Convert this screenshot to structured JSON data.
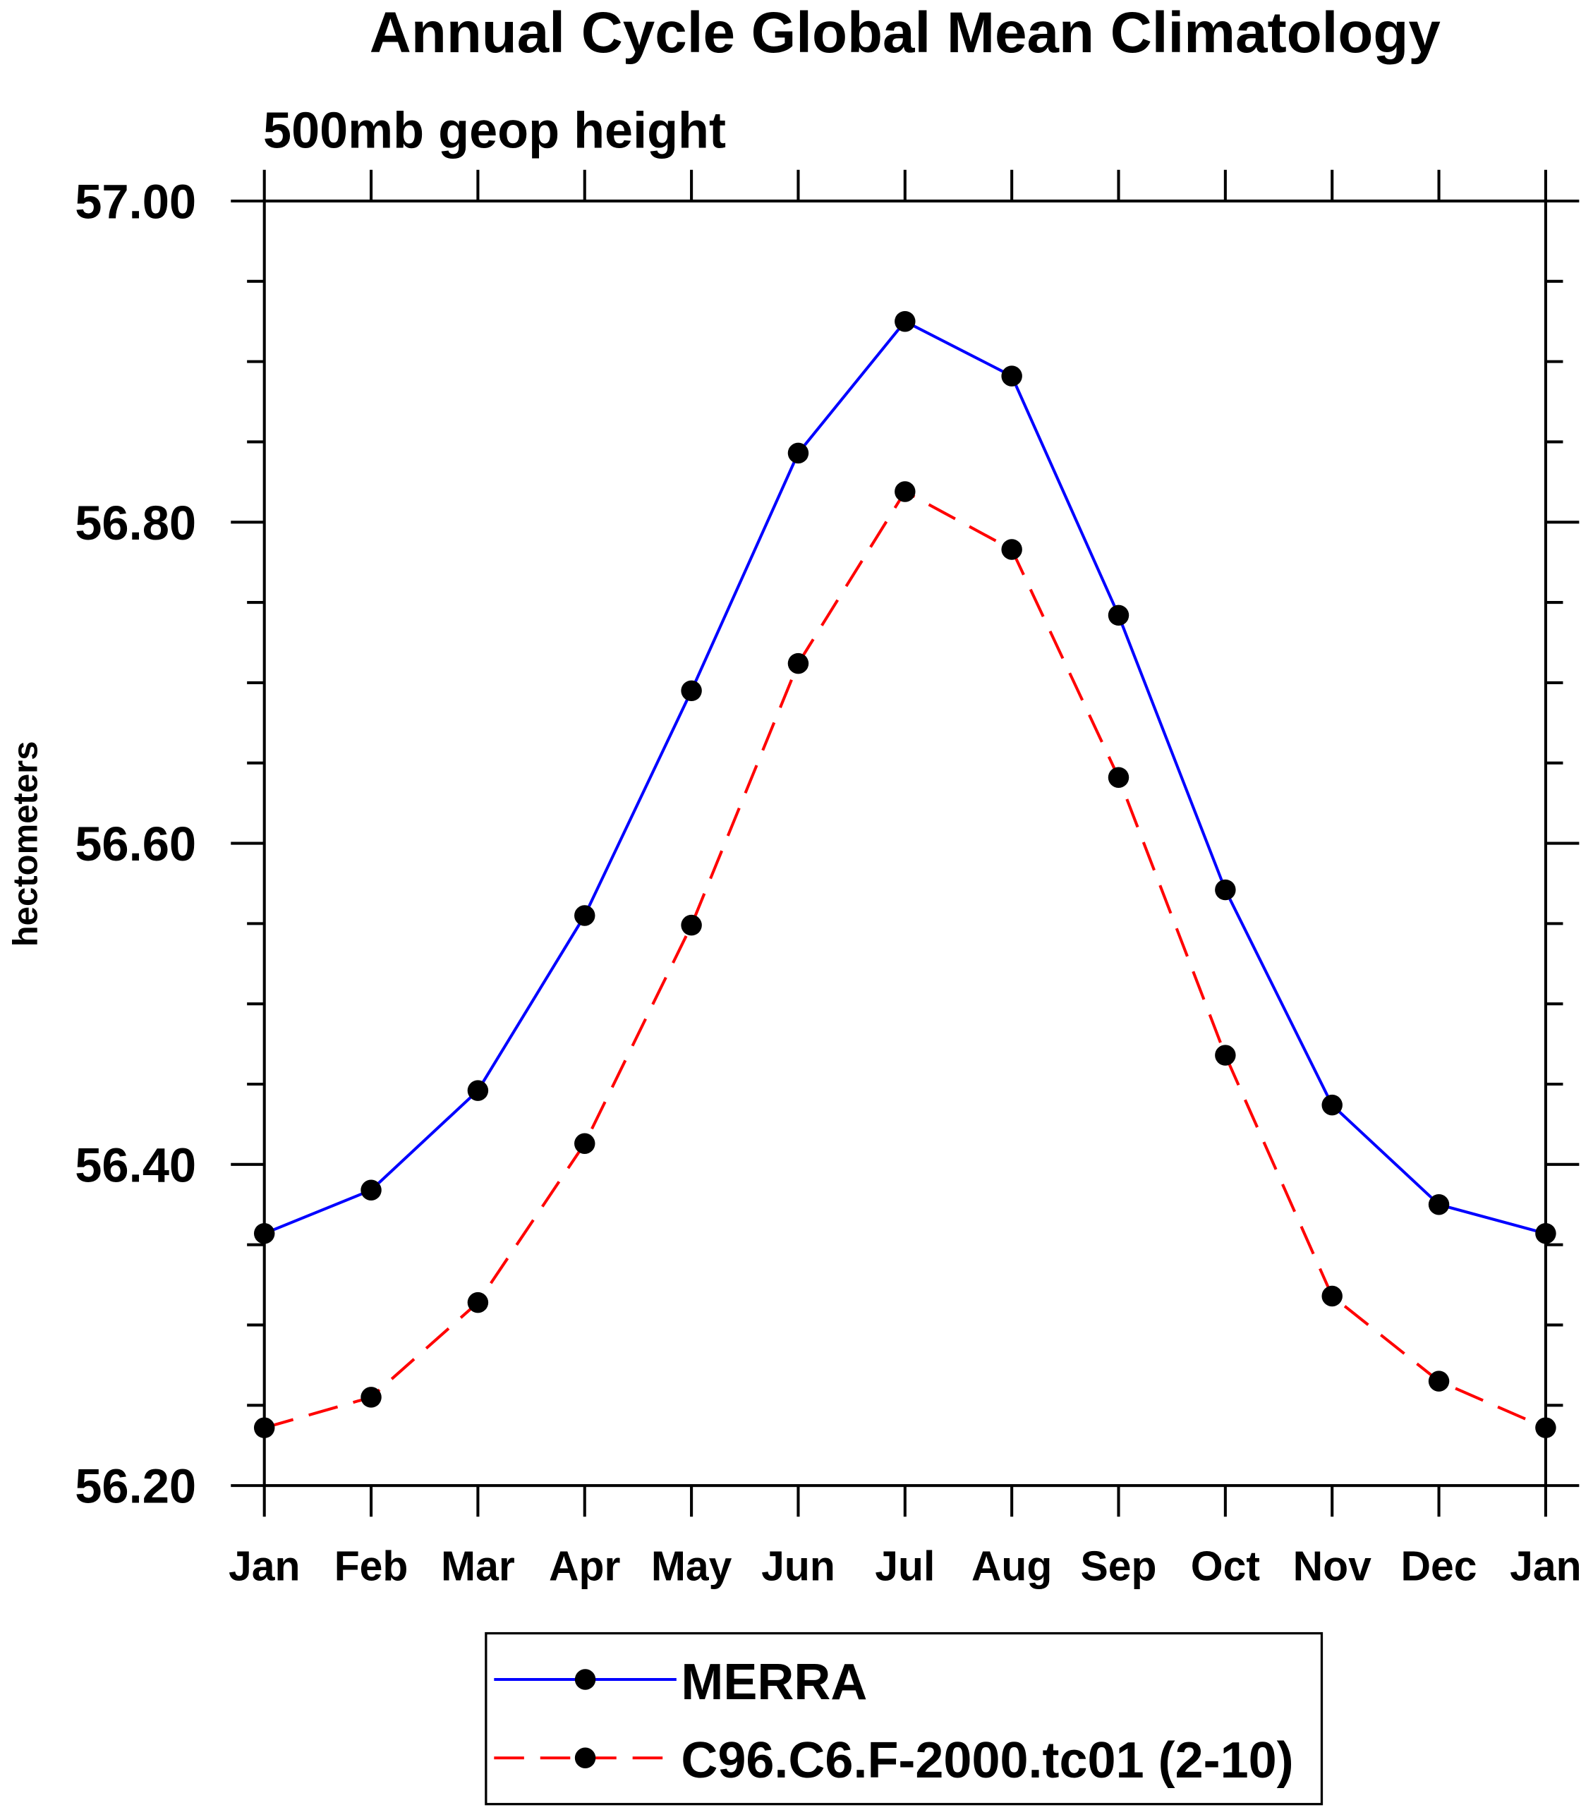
{
  "chart_data": {
    "type": "line",
    "title": "Annual Cycle Global Mean Climatology",
    "subtitle": "500mb geop height",
    "xlabel": "",
    "ylabel": "hectometers",
    "categories": [
      "Jan",
      "Feb",
      "Mar",
      "Apr",
      "May",
      "Jun",
      "Jul",
      "Aug",
      "Sep",
      "Oct",
      "Nov",
      "Dec",
      "Jan"
    ],
    "ylim": [
      56.2,
      57.0
    ],
    "yticks": [
      "56.20",
      "56.40",
      "56.60",
      "56.80",
      "57.00"
    ],
    "ytick_values": [
      56.2,
      56.4,
      56.6,
      56.8,
      57.0
    ],
    "grid": false,
    "legend_placement": "bottom-center",
    "series": [
      {
        "name": "MERRA",
        "color": "#0000ff",
        "dash": "solid",
        "values": [
          56.357,
          56.384,
          56.446,
          56.555,
          56.695,
          56.843,
          56.925,
          56.891,
          56.742,
          56.571,
          56.437,
          56.375,
          56.357
        ]
      },
      {
        "name": "C96.C6.F-2000.tc01 (2-10)",
        "color": "#ff0000",
        "dash": "dashed",
        "values": [
          56.236,
          56.255,
          56.314,
          56.413,
          56.549,
          56.712,
          56.819,
          56.783,
          56.641,
          56.468,
          56.318,
          56.265,
          56.236
        ]
      }
    ]
  }
}
